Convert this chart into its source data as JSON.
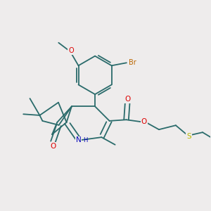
{
  "bg_color": "#eeecec",
  "bond_color": "#2a6b6b",
  "atom_colors": {
    "O": "#dd0000",
    "N": "#0000bb",
    "Br": "#bb6600",
    "S": "#bbbb00",
    "C": "#2a6b6b"
  },
  "figsize": [
    3.0,
    3.0
  ],
  "dpi": 100
}
